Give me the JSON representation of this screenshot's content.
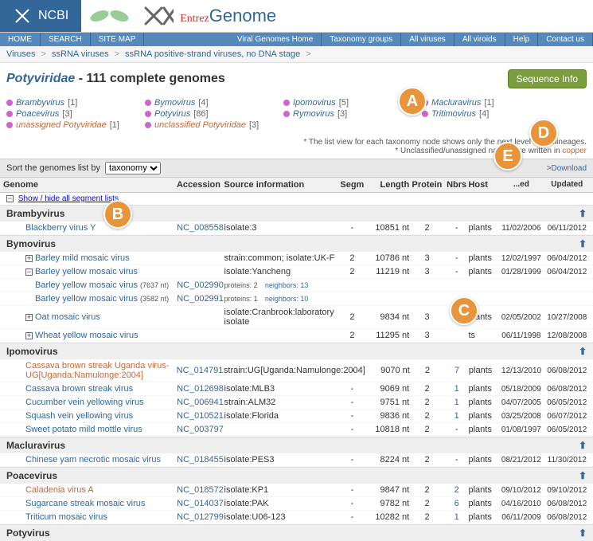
{
  "header": {
    "ncbi": "NCBI",
    "entrez": "Entrez",
    "genome": "Genome"
  },
  "nav": {
    "home": "HOME",
    "search": "SEARCH",
    "sitemap": "SITE MAP",
    "viral": "Viral Genomes Home",
    "taxgroups": "Taxonomy groups",
    "allviruses": "All viruses",
    "allviroids": "All viroids",
    "help": "Help",
    "contact": "Contact us"
  },
  "breadcrumb": {
    "b1": "Viruses",
    "b2": "ssRNA viruses",
    "b3": "ssRNA positive-strand viruses, no DNA stage",
    "sep": ">"
  },
  "title": {
    "name": "Potyviridae",
    "rest": " - 111 complete genomes"
  },
  "seqinfo": "Sequence Info",
  "taxa": [
    [
      {
        "n": "Brambyvirus",
        "c": "[1]"
      },
      {
        "n": "Bymovirus",
        "c": "[4]"
      },
      {
        "n": "Ipomovirus",
        "c": "[5]"
      },
      {
        "n": "Macluravirus",
        "c": "[1]"
      }
    ],
    [
      {
        "n": "Poacevirus",
        "c": "[3]"
      },
      {
        "n": "Potyvirus",
        "c": "[86]"
      },
      {
        "n": "Rymovirus",
        "c": "[3]"
      },
      {
        "n": "Tritimovirus",
        "c": "[4]"
      }
    ],
    [
      {
        "n": "unassigned Potyviridae",
        "c": "[1]",
        "copper": true
      },
      {
        "n": "unclassified Potyviridae",
        "c": "[3]",
        "copper": true
      }
    ]
  ],
  "notes": {
    "n1": "* The list view for each taxonomy node shows only the next level of sublineages.",
    "n2a": "* Unclassified/unassigned names are written in ",
    "n2b": "copper"
  },
  "sort": {
    "label": "Sort the genomes list by",
    "sel": "taxonomy",
    "download": ">Download"
  },
  "cols": {
    "genome": "Genome",
    "acc": "Accession",
    "src": "Source information",
    "segm": "Segm",
    "len": "Length",
    "prot": "Protein",
    "nbrs": "Nbrs",
    "host": "Host",
    "released": "Released",
    "updated": "Updated"
  },
  "showhide": "Show / hide all segment lists",
  "badges": {
    "A": "A",
    "B": "B",
    "C": "C",
    "D": "D",
    "E": "E"
  },
  "genera": {
    "bramby": "Brambyvirus",
    "bymo": "Bymovirus",
    "ipomo": "Ipomovirus",
    "maclura": "Macluravirus",
    "poace": "Poacevirus",
    "poty": "Potyvirus"
  },
  "rows": {
    "r1": {
      "g": "Blackberry virus Y",
      "a": "NC_008558",
      "s": "isolate:3",
      "sg": "-",
      "l": "10851 nt",
      "p": "2",
      "n": "-",
      "h": "plants",
      "rd": "11/02/2006",
      "ud": "06/11/2012"
    },
    "r2": {
      "g": "Barley mild mosaic virus",
      "s": "strain:common; isolate:UK-F",
      "sg": "2",
      "l": "10786 nt",
      "p": "3",
      "n": "-",
      "h": "plants",
      "rd": "12/02/1997",
      "ud": "06/04/2012"
    },
    "r3": {
      "g": "Barley yellow mosaic virus",
      "s": "isolate:Yancheng",
      "sg": "2",
      "l": "11219 nt",
      "p": "3",
      "n": "-",
      "h": "plants",
      "rd": "01/28/1999",
      "ud": "06/04/2012"
    },
    "r3a": {
      "g": "Barley yellow mosaic virus",
      "sz": "(7637 nt)",
      "a": "NC_002990",
      "pi": "proteins: 2",
      "ni": "neighbors: 13"
    },
    "r3b": {
      "g": "Barley yellow mosaic virus",
      "sz": "(3582 nt)",
      "a": "NC_002991",
      "pi": "proteins: 1",
      "ni": "neighbors: 10"
    },
    "r4": {
      "g": "Oat mosaic virus",
      "s": "isolate:Cranbrook:laboratory isolate",
      "sg": "2",
      "l": "9834 nt",
      "p": "3",
      "n": "",
      "h": "plants",
      "rd": "02/05/2002",
      "ud": "10/27/2008"
    },
    "r5": {
      "g": "Wheat yellow mosaic virus",
      "sg": "2",
      "l": "11295 nt",
      "p": "3",
      "n": "",
      "h": "ts",
      "rd": "06/11/1998",
      "ud": "12/08/2008"
    },
    "r6": {
      "g": "Cassava brown streak Uganda virus-UG[Uganda:Namulonge:2004]",
      "a": "NC_014791",
      "s": "strain:UG[Uganda:Namulonge:2004]",
      "sg": "-",
      "l": "9070 nt",
      "p": "2",
      "n": "7",
      "h": "plants",
      "rd": "12/13/2010",
      "ud": "06/08/2012"
    },
    "r7": {
      "g": "Cassava brown streak virus",
      "a": "NC_012698",
      "s": "isolate:MLB3",
      "sg": "-",
      "l": "9069 nt",
      "p": "2",
      "n": "1",
      "h": "plants",
      "rd": "05/18/2009",
      "ud": "06/08/2012"
    },
    "r8": {
      "g": "Cucumber vein yellowing virus",
      "a": "NC_006941",
      "s": "strain:ALM32",
      "sg": "-",
      "l": "9751 nt",
      "p": "2",
      "n": "1",
      "h": "plants",
      "rd": "04/07/2005",
      "ud": "06/05/2012"
    },
    "r9": {
      "g": "Squash vein yellowing virus",
      "a": "NC_010521",
      "s": "isolate:Florida",
      "sg": "-",
      "l": "9836 nt",
      "p": "2",
      "n": "1",
      "h": "plants",
      "rd": "03/25/2008",
      "ud": "06/07/2012"
    },
    "r10": {
      "g": "Sweet potato mild mottle virus",
      "a": "NC_003797",
      "sg": "-",
      "l": "10818 nt",
      "p": "2",
      "n": "-",
      "h": "plants",
      "rd": "01/08/1997",
      "ud": "06/05/2012"
    },
    "r11": {
      "g": "Chinese yam necrotic mosaic virus",
      "a": "NC_018455",
      "s": "isolate:PES3",
      "sg": "-",
      "l": "8224 nt",
      "p": "2",
      "n": "-",
      "h": "plants",
      "rd": "08/21/2012",
      "ud": "11/30/2012"
    },
    "r12": {
      "g": "Caladenia virus A",
      "a": "NC_018572",
      "s": "isolate:KP1",
      "sg": "-",
      "l": "9847 nt",
      "p": "2",
      "n": "2",
      "h": "plants",
      "rd": "09/10/2012",
      "ud": "09/10/2012"
    },
    "r13": {
      "g": "Sugarcane streak mosaic virus",
      "a": "NC_014037",
      "s": "isolate:PAK",
      "sg": "-",
      "l": "9782 nt",
      "p": "2",
      "n": "6",
      "h": "plants",
      "rd": "04/16/2010",
      "ud": "06/08/2012"
    },
    "r14": {
      "g": "Triticum mosaic virus",
      "a": "NC_012799",
      "s": "isolate:U06-123",
      "sg": "-",
      "l": "10282 nt",
      "p": "2",
      "n": "1",
      "h": "plants",
      "rd": "06/11/2009",
      "ud": "06/08/2012"
    }
  }
}
